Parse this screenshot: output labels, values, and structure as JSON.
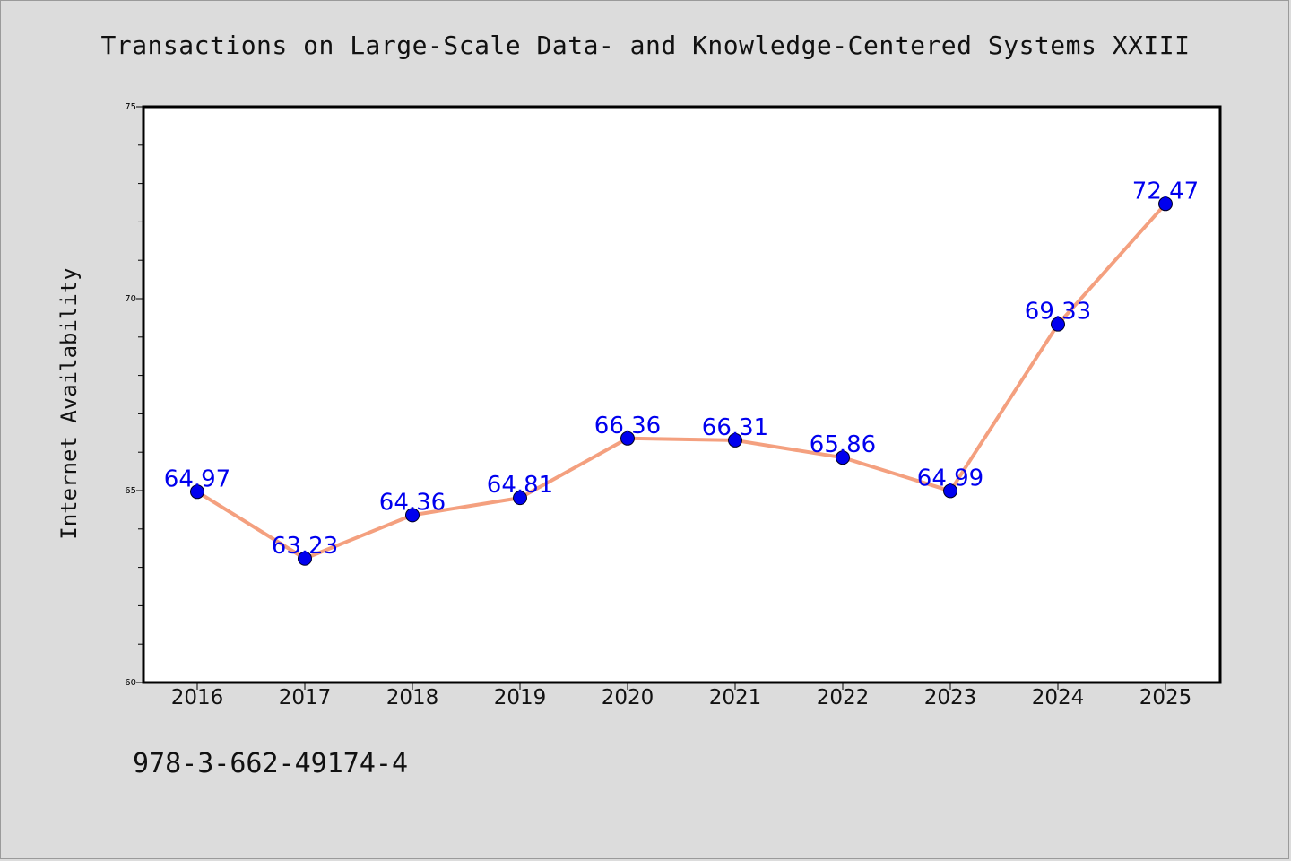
{
  "title": "Transactions on Large-Scale Data- and Knowledge-Centered Systems XXIII",
  "isbn": "978-3-662-49174-4",
  "colors": {
    "background": "#dcdcdc",
    "plot_background": "#ffffff",
    "line": "#f4a07f",
    "marker": "#0000ee",
    "label": "#0000ee"
  },
  "chart_data": {
    "type": "line",
    "title": "Transactions on Large-Scale Data- and Knowledge-Centered Systems XXIII",
    "xlabel": "",
    "ylabel": "Internet Availability",
    "categories": [
      "2016",
      "2017",
      "2018",
      "2019",
      "2020",
      "2021",
      "2022",
      "2023",
      "2024",
      "2025"
    ],
    "series": [
      {
        "values": [
          64.97,
          63.23,
          64.36,
          64.81,
          66.36,
          66.31,
          65.86,
          64.99,
          69.33,
          72.47
        ],
        "labels": [
          "64.97",
          "63.23",
          "64.36",
          "64.81",
          "66.36",
          "66.31",
          "65.86",
          "64.99",
          "69.33",
          "72.47"
        ]
      }
    ],
    "ylim": [
      60,
      75
    ],
    "yticks": [
      60,
      65,
      70,
      75
    ],
    "ytick_labels": [
      "60",
      "65",
      "70",
      "75"
    ],
    "minor_step": 1,
    "grid": false,
    "legend": "none"
  }
}
